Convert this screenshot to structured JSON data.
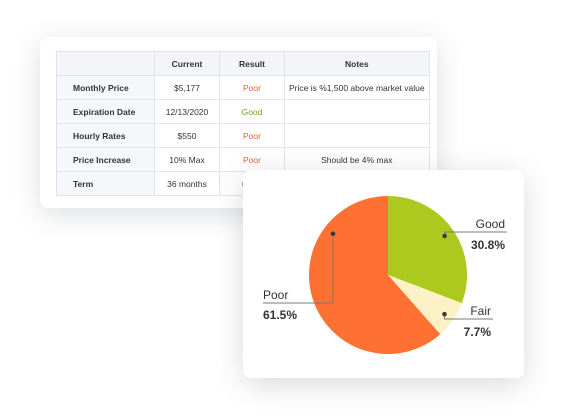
{
  "table": {
    "headers": [
      "",
      "Current",
      "Result",
      "Notes"
    ],
    "rows": [
      {
        "label": "Monthly Price",
        "current": "$5,177",
        "result": "Poor",
        "notes": "Price is %1,500 above market value"
      },
      {
        "label": "Expiration Date",
        "current": "12/13/2020",
        "result": "Good",
        "notes": ""
      },
      {
        "label": "Hourly Rates",
        "current": "$550",
        "result": "Poor",
        "notes": ""
      },
      {
        "label": "Price Increase",
        "current": "10% Max",
        "result": "Poor",
        "notes": "Should be 4% max"
      },
      {
        "label": "Term",
        "current": "36 months",
        "result": "Good",
        "notes": ""
      }
    ],
    "colors": {
      "poor": "#ee5a3a",
      "good": "#6aa51b"
    }
  },
  "chart_data": {
    "type": "pie",
    "slices": [
      {
        "label": "Good",
        "value": 30.8,
        "display": "30.8%",
        "color": "#adc81f"
      },
      {
        "label": "Fair",
        "value": 7.7,
        "display": "7.7%",
        "color": "#fdf1c6"
      },
      {
        "label": "Poor",
        "value": 61.5,
        "display": "61.5%",
        "color": "#ff7033"
      }
    ]
  }
}
